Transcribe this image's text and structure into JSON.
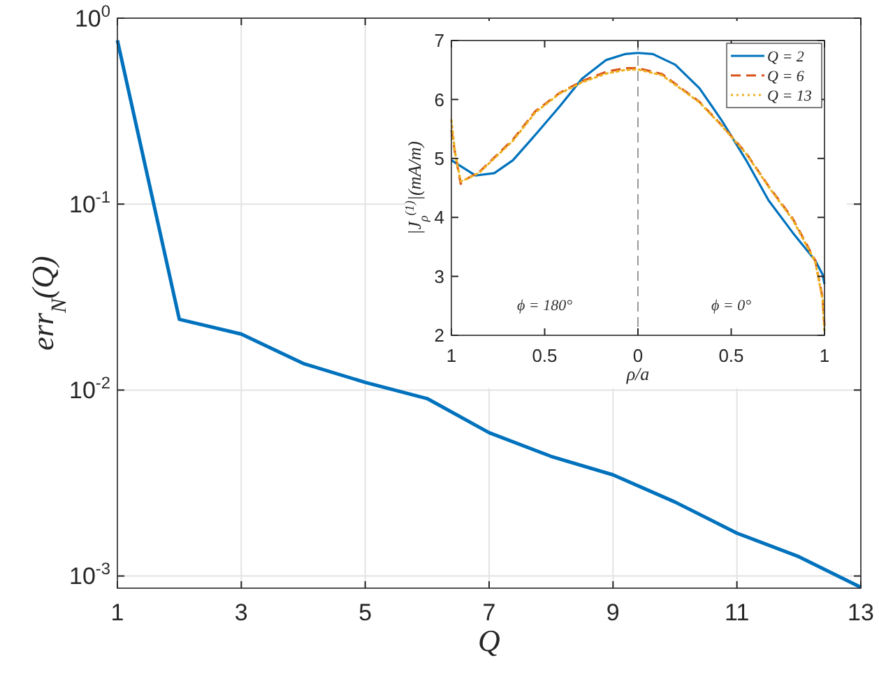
{
  "chart_data": [
    {
      "type": "line",
      "xlabel": "Q",
      "ylabel": "err$_{N}$(Q)",
      "log": "y",
      "grid": true,
      "x": [
        1,
        2,
        3,
        4,
        5,
        6,
        7,
        8,
        9,
        10,
        11,
        12,
        13
      ],
      "series": [
        {
          "color": "#0072bd",
          "values": [
            0.76,
            0.024,
            0.02,
            0.0139,
            0.011,
            0.009,
            0.0059,
            0.0044,
            0.0035,
            0.0025,
            0.0017,
            0.00127,
            0.00087
          ]
        }
      ],
      "xlim": [
        1,
        13
      ],
      "xticks": [
        1,
        3,
        5,
        7,
        9,
        11,
        13
      ],
      "ylim": [
        0.00086,
        1
      ],
      "yticks": [
        {
          "value": 0.001,
          "label": "10$^{-3}$"
        },
        {
          "value": 0.01,
          "label": "10$^{-2}$"
        },
        {
          "value": 0.1,
          "label": "10$^{-1}$"
        },
        {
          "value": 1,
          "label": "10$^{0}$"
        }
      ]
    },
    {
      "type": "line",
      "xlabel": "ρ/a",
      "ylabel": "|J$_{ρ}$$^{(1)}$|(mA/m)",
      "legend": "top right",
      "grid": false,
      "annotations": [
        "ϕ = 180°",
        "ϕ = 0°"
      ],
      "ref_lines": [
        {
          "axis": "x",
          "value": 0,
          "color": "#999999",
          "line_style": "dashed"
        }
      ],
      "xlim": [
        -1,
        1
      ],
      "xticks": [
        {
          "value": -1,
          "label": "1"
        },
        {
          "value": -0.5,
          "label": "0.5"
        },
        0,
        0.5,
        1
      ],
      "ylim": [
        2,
        7
      ],
      "yticks": [
        2,
        3,
        4,
        5,
        6,
        7
      ],
      "series": [
        {
          "name": "Q = 2",
          "color": "#0072bd",
          "line_style": "solid",
          "x": [
            -1,
            -0.87,
            -0.77,
            -0.67,
            -0.55,
            -0.42,
            -0.3,
            -0.17,
            -0.07,
            0,
            0.08,
            0.2,
            0.33,
            0.45,
            0.58,
            0.7,
            0.83,
            0.95,
            0.99,
            1
          ],
          "values": [
            4.97,
            4.71,
            4.75,
            4.97,
            5.4,
            5.88,
            6.35,
            6.67,
            6.77,
            6.79,
            6.77,
            6.59,
            6.19,
            5.64,
            4.97,
            4.29,
            3.74,
            3.27,
            3.03,
            2.87
          ]
        },
        {
          "name": "Q = 6",
          "color": "#d95319",
          "line_style": "dashed",
          "x": [
            -1,
            -0.98,
            -0.95,
            -0.92,
            -0.85,
            -0.67,
            -0.55,
            -0.42,
            -0.3,
            -0.17,
            -0.07,
            0,
            0.13,
            0.33,
            0.45,
            0.58,
            0.7,
            0.83,
            0.95,
            0.99,
            1
          ],
          "values": [
            5.48,
            5.09,
            4.57,
            4.65,
            4.77,
            5.32,
            5.8,
            6.11,
            6.31,
            6.47,
            6.53,
            6.53,
            6.43,
            5.96,
            5.56,
            5.09,
            4.53,
            3.98,
            3.27,
            2.63,
            2.16
          ]
        },
        {
          "name": "Q = 13",
          "color": "#edb120",
          "line_style": "dotted",
          "x": [
            -1,
            -0.98,
            -0.95,
            -0.92,
            -0.85,
            -0.67,
            -0.55,
            -0.42,
            -0.3,
            -0.17,
            -0.07,
            0,
            0.13,
            0.33,
            0.45,
            0.58,
            0.7,
            0.83,
            0.95,
            0.99,
            1
          ],
          "values": [
            5.65,
            5.09,
            4.61,
            4.65,
            4.76,
            5.3,
            5.78,
            6.1,
            6.29,
            6.44,
            6.5,
            6.51,
            6.41,
            5.95,
            5.55,
            5.08,
            4.52,
            3.96,
            3.25,
            2.6,
            2.04
          ]
        }
      ]
    }
  ]
}
